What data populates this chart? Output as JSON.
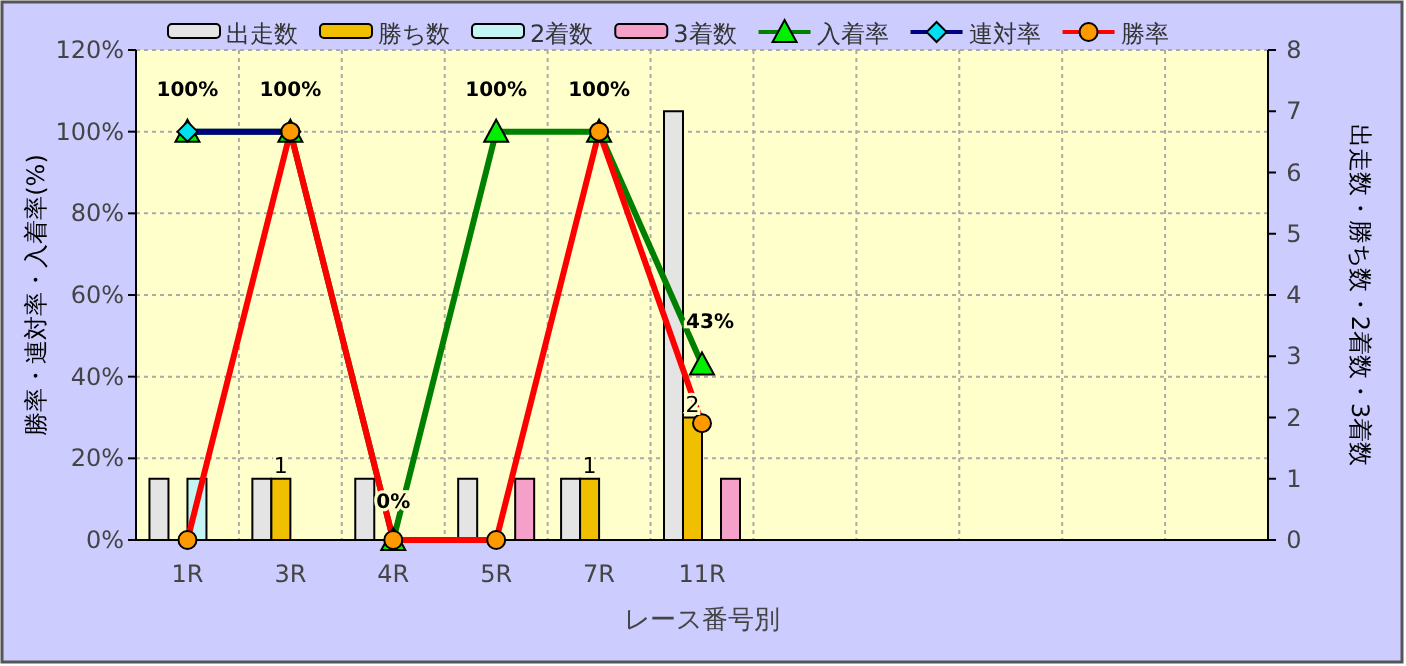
{
  "chart_data": {
    "type": "bar",
    "xlabel": "レース番号別",
    "ylabel": "勝率・連対率・入着率(%)",
    "y2label": "出走数・勝ち数・2着数・3着数",
    "categories": [
      "1R",
      "3R",
      "4R",
      "5R",
      "7R",
      "11R",
      null,
      null,
      null,
      null,
      null
    ],
    "series": [
      {
        "name": "出走数",
        "axis": "y2",
        "color": "#e4e4e4",
        "values": [
          1,
          1,
          1,
          1,
          1,
          7,
          null,
          null,
          null,
          null,
          null
        ]
      },
      {
        "name": "勝ち数",
        "axis": "y2",
        "color": "#f0c000",
        "values": [
          0,
          1,
          0,
          0,
          1,
          2,
          null,
          null,
          null,
          null,
          null
        ],
        "value_labels": [
          null,
          "1",
          null,
          null,
          "1",
          "2",
          null,
          null,
          null,
          null,
          null
        ]
      },
      {
        "name": "2着数",
        "axis": "y2",
        "color": "#c4f4f4",
        "values": [
          1,
          0,
          0,
          0,
          0,
          0,
          null,
          null,
          null,
          null,
          null
        ]
      },
      {
        "name": "3着数",
        "axis": "y2",
        "color": "#f4a0c8",
        "values": [
          0,
          0,
          0,
          1,
          0,
          1,
          null,
          null,
          null,
          null,
          null
        ]
      },
      {
        "name": "入着率",
        "type": "line",
        "color": "#008000",
        "marker": "triangle",
        "values": [
          100,
          100,
          0,
          100,
          100,
          43,
          null,
          null,
          null,
          null,
          null
        ],
        "value_labels": [
          "100%",
          "100%",
          "0%",
          "100%",
          "100%",
          "43%",
          null,
          null,
          null,
          null,
          null
        ]
      },
      {
        "name": "連対率",
        "type": "line",
        "color": "#000080",
        "marker": "diamond",
        "values": [
          100,
          100,
          null,
          null,
          null,
          null,
          null,
          null,
          null,
          null,
          null
        ]
      },
      {
        "name": "勝率",
        "type": "line",
        "color": "#ff0000",
        "marker": "circle",
        "values": [
          0,
          100,
          0,
          0,
          100,
          28.6,
          null,
          null,
          null,
          null,
          null
        ]
      }
    ],
    "ylim": [
      0,
      120
    ],
    "yticks": [
      {
        "value": 0,
        "label": "0%"
      },
      {
        "value": 20,
        "label": "20%"
      },
      {
        "value": 40,
        "label": "40%"
      },
      {
        "value": 60,
        "label": "60%"
      },
      {
        "value": 80,
        "label": "80%"
      },
      {
        "value": 100,
        "label": "100%"
      },
      {
        "value": 120,
        "label": "120%"
      }
    ],
    "y2lim": [
      0,
      8
    ],
    "y2ticks": [
      0,
      1,
      2,
      3,
      4,
      5,
      6,
      7,
      8
    ],
    "grid": true,
    "legend": "top"
  }
}
